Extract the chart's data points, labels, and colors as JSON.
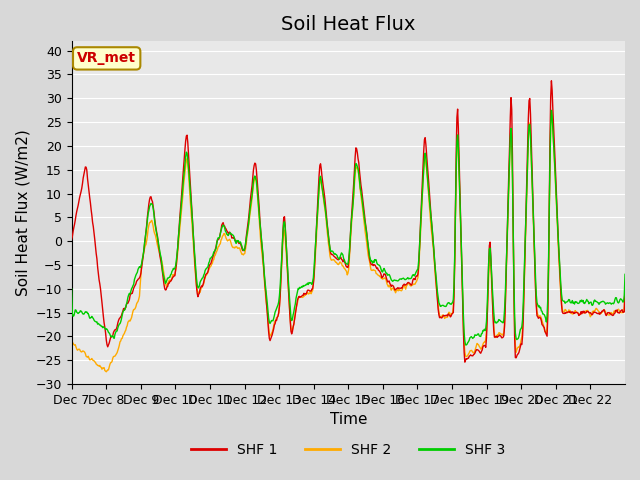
{
  "title": "Soil Heat Flux",
  "ylabel": "Soil Heat Flux (W/m2)",
  "xlabel": "Time",
  "ylim": [
    -30,
    42
  ],
  "yticks": [
    -30,
    -25,
    -20,
    -15,
    -10,
    -5,
    0,
    5,
    10,
    15,
    20,
    25,
    30,
    35,
    40
  ],
  "x_labels": [
    "Dec 7",
    "Dec 8",
    "Dec 9",
    "Dec 10",
    "Dec 11",
    "Dec 12",
    "Dec 13",
    "Dec 14",
    "Dec 15",
    "Dec 16",
    "Dec 17",
    "Dec 18",
    "Dec 19",
    "Dec 20",
    "Dec 21",
    "Dec 22"
  ],
  "shf1_color": "#dd0000",
  "shf2_color": "#ffaa00",
  "shf3_color": "#00cc00",
  "legend_label1": "SHF 1",
  "legend_label2": "SHF 2",
  "legend_label3": "SHF 3",
  "vr_met_label": "VR_met",
  "fig_bg_color": "#d8d8d8",
  "plot_bg_color": "#e8e8e8",
  "grid_color": "#ffffff",
  "title_fontsize": 14,
  "axis_label_fontsize": 11,
  "tick_fontsize": 9
}
